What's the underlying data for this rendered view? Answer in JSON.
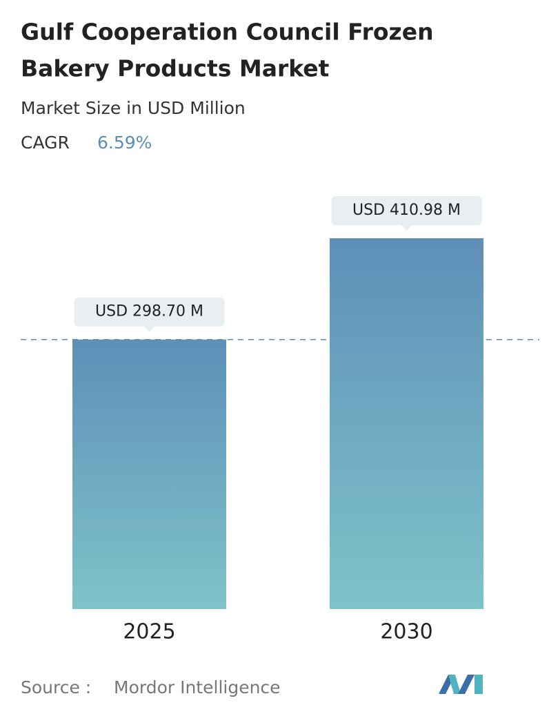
{
  "chart_data": {
    "type": "bar",
    "title": [
      "Gulf Cooperation Council Frozen",
      "Bakery Products Market"
    ],
    "subtitle": "Market Size in USD Million",
    "cagr_label": "CAGR",
    "cagr_value": "6.59%",
    "categories": [
      "2025",
      "2030"
    ],
    "values": [
      298.7,
      410.98
    ],
    "value_labels": [
      "USD 298.70 M",
      "USD 410.98 M"
    ],
    "color_top": "#5e8fb8",
    "color_bottom": "#7ec3c9",
    "source_label": "Source :",
    "source": "Mordor Intelligence"
  }
}
